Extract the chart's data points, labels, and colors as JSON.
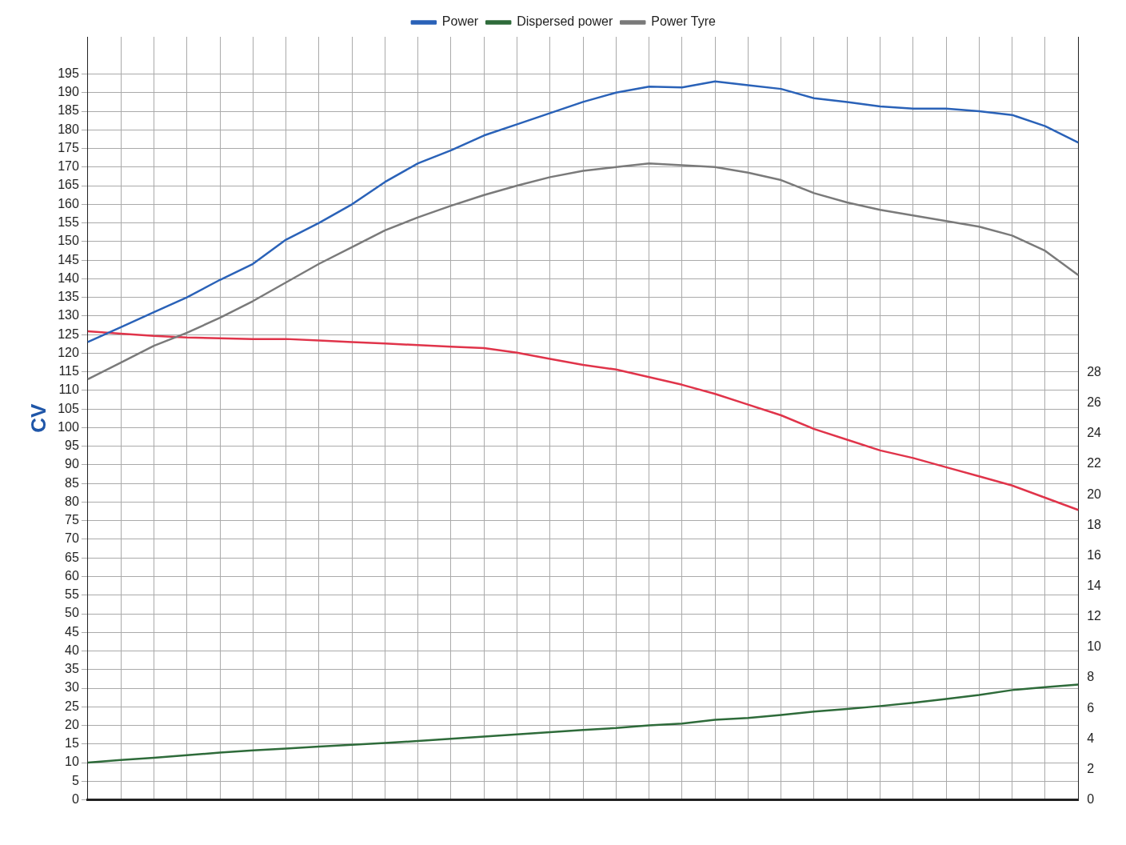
{
  "chart_data": {
    "type": "line",
    "ylabel": "CV",
    "legend": "top",
    "grid": true,
    "marker": "none",
    "line_style": "solid",
    "categories": [
      null,
      null,
      null,
      null,
      null,
      null,
      null,
      null,
      null,
      null,
      null,
      null,
      null,
      null,
      null,
      null,
      null,
      null,
      null,
      null,
      null,
      null,
      null,
      null,
      null,
      null,
      null,
      null,
      null,
      null,
      null
    ],
    "ylim": [
      0,
      205
    ],
    "yticks": [
      0,
      5,
      10,
      15,
      20,
      25,
      30,
      35,
      40,
      45,
      50,
      55,
      60,
      65,
      70,
      75,
      80,
      85,
      90,
      95,
      100,
      105,
      110,
      115,
      120,
      125,
      130,
      135,
      140,
      145,
      150,
      155,
      160,
      165,
      170,
      175,
      180,
      185,
      190,
      195
    ],
    "y2lim": [
      0,
      50
    ],
    "y2ticks": [
      0,
      2,
      4,
      6,
      8,
      10,
      12,
      14,
      16,
      18,
      20,
      22,
      24,
      26,
      28
    ],
    "series": [
      {
        "name": "Power",
        "color": "#2a62b8",
        "values": [
          123,
          127,
          131,
          135,
          139.7,
          144,
          150.5,
          155,
          160,
          166,
          171,
          174.5,
          178.5,
          181.5,
          184.5,
          187.5,
          190,
          191.6,
          191.4,
          193,
          192,
          191,
          188.5,
          187.5,
          186.3,
          185.7,
          185.7,
          185,
          184,
          181,
          176.6
        ]
      },
      {
        "name": "Dispersed power",
        "color": "#2e6b3a",
        "values": [
          10,
          10.7,
          11.3,
          12,
          12.7,
          13.3,
          13.8,
          14.3,
          14.8,
          15.3,
          15.8,
          16.4,
          17,
          17.6,
          18.2,
          18.8,
          19.3,
          20,
          20.5,
          21.5,
          22,
          22.8,
          23.7,
          24.4,
          25.2,
          26.1,
          27.1,
          28.2,
          29.5,
          30.3,
          31
        ]
      },
      {
        "name": "Power Tyre",
        "color": "#7a7a7a",
        "values": [
          113,
          117.5,
          122,
          125.5,
          129.5,
          134,
          139,
          144,
          148.5,
          153,
          156.5,
          159.6,
          162.5,
          165,
          167.3,
          169,
          170,
          171,
          170.5,
          170,
          168.5,
          166.5,
          163,
          160.5,
          158.5,
          157,
          155.5,
          154,
          151.6,
          147.5,
          141
        ]
      },
      {
        "color": "#e0344a",
        "axis": "y2",
        "values": [
          30.7,
          30.55,
          30.4,
          30.3,
          30.25,
          30.2,
          30.2,
          30.1,
          30,
          29.9,
          29.8,
          29.7,
          29.6,
          29.3,
          28.9,
          28.5,
          28.2,
          27.7,
          27.2,
          26.6,
          25.9,
          25.2,
          24.3,
          23.6,
          22.9,
          22.4,
          21.8,
          21.2,
          20.6,
          19.8,
          19
        ]
      }
    ]
  }
}
